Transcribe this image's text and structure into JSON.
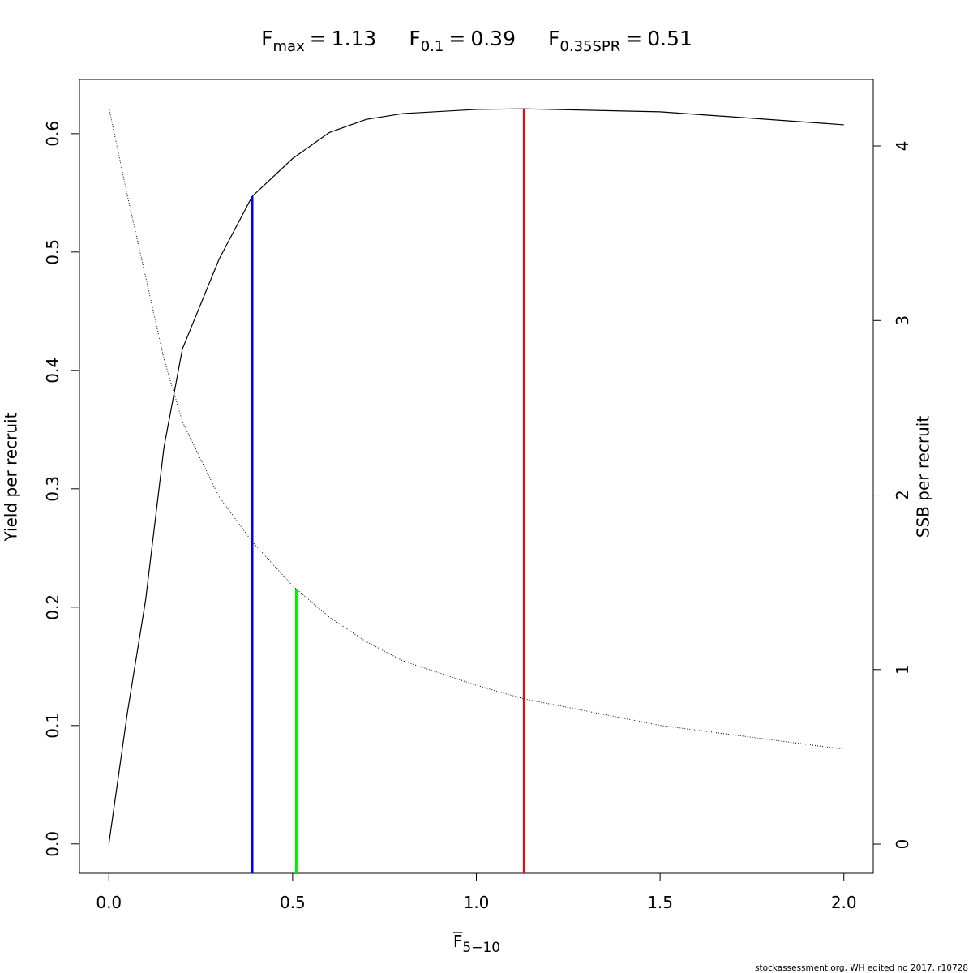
{
  "chart_data": {
    "type": "line",
    "ref_lines": [
      {
        "symbol": "F",
        "subscript": "max",
        "relation": "=",
        "x": 1.13,
        "top": 0.621,
        "axis": "y",
        "color": "#ff0000"
      },
      {
        "symbol": "F",
        "subscript": "0.1",
        "relation": "=",
        "x": 0.39,
        "top": 0.547,
        "axis": "y",
        "color": "#0000ff"
      },
      {
        "symbol": "F",
        "subscript": "0.35SPR",
        "relation": "=",
        "x": 0.51,
        "top": 1.459,
        "axis": "y2",
        "color": "#00ee00"
      }
    ],
    "x": [
      0,
      0.05,
      0.1,
      0.15,
      0.2,
      0.3,
      0.39,
      0.5,
      0.6,
      0.7,
      0.8,
      1.0,
      1.13,
      1.5,
      2.0
    ],
    "series": [
      {
        "name": "Yield per recruit",
        "color": "#000000",
        "dash": "solid",
        "values": [
          0,
          0.11,
          0.206,
          0.335,
          0.418,
          0.494,
          0.547,
          0.579,
          0.601,
          0.612,
          0.617,
          0.6205,
          0.621,
          0.6185,
          0.6075
        ]
      },
      {
        "name": "SSB per recruit",
        "color": "#000000",
        "dash": "dotted",
        "axis": "y2",
        "values": [
          4.22,
          3.72,
          3.25,
          2.78,
          2.42,
          1.99,
          1.733,
          1.48,
          1.3,
          1.16,
          1.05,
          0.91,
          0.832,
          0.68,
          0.544
        ]
      }
    ],
    "xlabel": {
      "text": "F",
      "subscript": "5−10"
    },
    "ylabel": "Yield per recruit",
    "y2label": "SSB per recruit",
    "xlim": [
      -0.08,
      2.08
    ],
    "ylim": [
      -0.0248,
      0.6458
    ],
    "y2lim": [
      -0.167,
      4.381
    ],
    "xticks": [
      {
        "value": 0,
        "label": "0.0"
      },
      0.5,
      {
        "value": 1,
        "label": "1.0"
      },
      1.5,
      {
        "value": 2,
        "label": "2.0"
      }
    ],
    "yticks": [
      {
        "value": 0,
        "label": "0.0"
      },
      0.1,
      0.2,
      0.3,
      0.4,
      0.5,
      0.6
    ],
    "y2ticks": [
      0,
      1,
      2,
      3,
      4
    ],
    "footer": "stockassessment.org, WH  edited  no  2017, r10728"
  }
}
